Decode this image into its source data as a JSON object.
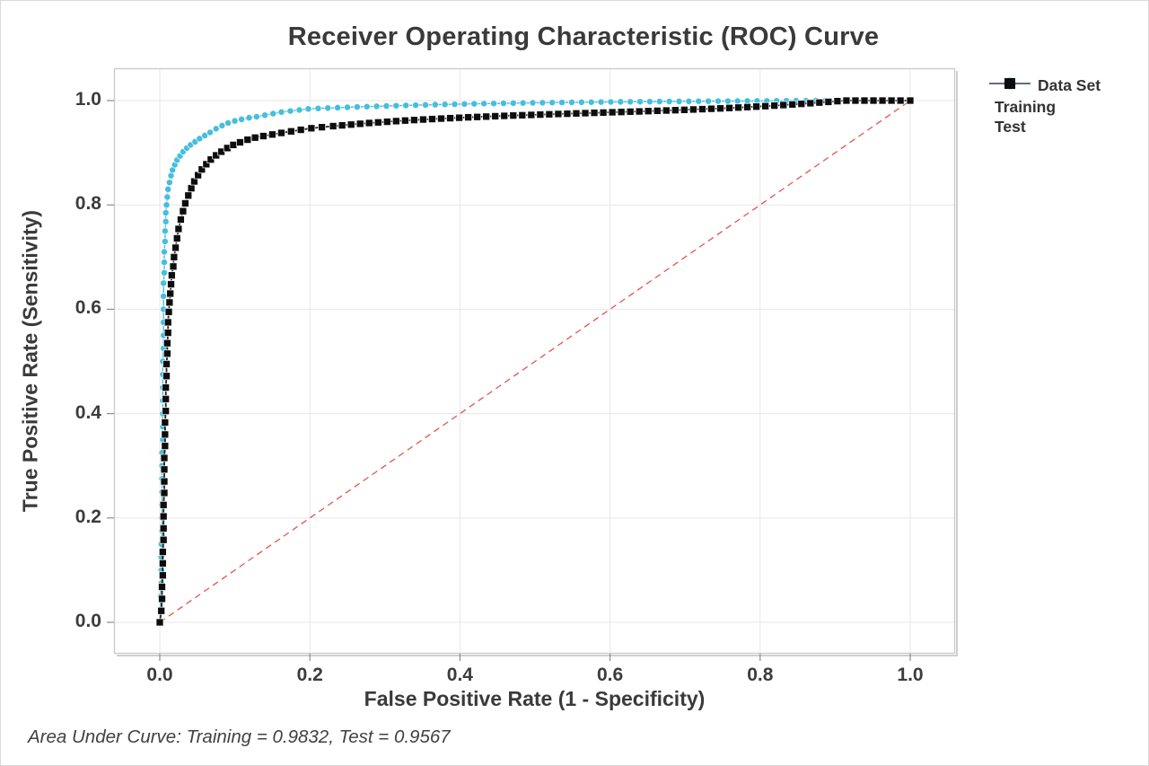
{
  "figure": {
    "title": "Receiver Operating Characteristic (ROC) Curve",
    "footer": "Area Under Curve: Training = 0.9832, Test = 0.9567"
  },
  "legend": {
    "title": "Data Set",
    "items": [
      {
        "label": "Training",
        "marker": "circle",
        "color": "#47BEDC",
        "line_color": "#47BEDC"
      },
      {
        "label": "Test",
        "marker": "square",
        "color": "#0d0d0d",
        "line_color": "#4d4d4d"
      }
    ]
  },
  "colors": {
    "grid": "#e7e7e7",
    "frame": "#c9c9c9",
    "frame_shadow": "#cfcfcf",
    "tick": "#8c8c8c",
    "reference": "#E2554D",
    "training": "#47BEDC",
    "test": "#0d0d0d",
    "test_line": "#1f1f1f",
    "text": "#3a3a3a"
  },
  "chart_data": {
    "type": "line",
    "title": "Receiver Operating Characteristic (ROC) Curve",
    "xlabel": "False Positive Rate (1 - Specificity)",
    "ylabel": "True Positive Rate (Sensitivity)",
    "xlim": [
      0,
      1
    ],
    "ylim": [
      0,
      1
    ],
    "grid": true,
    "legend_position": "right",
    "ticks": {
      "x": [
        "0.0",
        "0.2",
        "0.4",
        "0.6",
        "0.8",
        "1.0"
      ],
      "y": [
        "0.0",
        "0.2",
        "0.4",
        "0.6",
        "0.8",
        "1.0"
      ]
    },
    "reference_line": {
      "from": [
        0,
        0
      ],
      "to": [
        1,
        1
      ],
      "style": "dashed",
      "color": "#E2554D"
    },
    "annotation": "Area Under Curve: Training = 0.9832, Test = 0.9567",
    "series": [
      {
        "name": "Training",
        "auc": 0.9832,
        "marker": "circle",
        "color": "#47BEDC",
        "points": [
          [
            0,
            0
          ],
          [
            0.001,
            0.025
          ],
          [
            0.001,
            0.05
          ],
          [
            0.002,
            0.075
          ],
          [
            0.002,
            0.1
          ],
          [
            0.002,
            0.125
          ],
          [
            0.002,
            0.15
          ],
          [
            0.003,
            0.175
          ],
          [
            0.003,
            0.2
          ],
          [
            0.003,
            0.225
          ],
          [
            0.003,
            0.25
          ],
          [
            0.003,
            0.275
          ],
          [
            0.003,
            0.3
          ],
          [
            0.003,
            0.325
          ],
          [
            0.004,
            0.35
          ],
          [
            0.004,
            0.375
          ],
          [
            0.004,
            0.4
          ],
          [
            0.004,
            0.425
          ],
          [
            0.004,
            0.45
          ],
          [
            0.004,
            0.475
          ],
          [
            0.004,
            0.5
          ],
          [
            0.005,
            0.525
          ],
          [
            0.005,
            0.55
          ],
          [
            0.005,
            0.575
          ],
          [
            0.005,
            0.6
          ],
          [
            0.005,
            0.625
          ],
          [
            0.005,
            0.65
          ],
          [
            0.006,
            0.67
          ],
          [
            0.006,
            0.69
          ],
          [
            0.006,
            0.71
          ],
          [
            0.007,
            0.73
          ],
          [
            0.007,
            0.75
          ],
          [
            0.008,
            0.768
          ],
          [
            0.008,
            0.785
          ],
          [
            0.009,
            0.8
          ],
          [
            0.01,
            0.815
          ],
          [
            0.011,
            0.83
          ],
          [
            0.013,
            0.843
          ],
          [
            0.015,
            0.856
          ],
          [
            0.017,
            0.867
          ],
          [
            0.02,
            0.877
          ],
          [
            0.023,
            0.886
          ],
          [
            0.027,
            0.894
          ],
          [
            0.031,
            0.902
          ],
          [
            0.036,
            0.909
          ],
          [
            0.041,
            0.915
          ],
          [
            0.047,
            0.921
          ],
          [
            0.053,
            0.927
          ],
          [
            0.06,
            0.933
          ],
          [
            0.067,
            0.939
          ],
          [
            0.075,
            0.946
          ],
          [
            0.083,
            0.952
          ],
          [
            0.091,
            0.957
          ],
          [
            0.1,
            0.961
          ],
          [
            0.109,
            0.964
          ],
          [
            0.119,
            0.967
          ],
          [
            0.129,
            0.969
          ],
          [
            0.14,
            0.972
          ],
          [
            0.151,
            0.975
          ],
          [
            0.162,
            0.978
          ],
          [
            0.174,
            0.98
          ],
          [
            0.186,
            0.982
          ],
          [
            0.198,
            0.984
          ],
          [
            0.211,
            0.985
          ],
          [
            0.224,
            0.9857
          ],
          [
            0.237,
            0.9864
          ],
          [
            0.25,
            0.9871
          ],
          [
            0.263,
            0.9878
          ],
          [
            0.276,
            0.9884
          ],
          [
            0.289,
            0.989
          ],
          [
            0.302,
            0.9896
          ],
          [
            0.315,
            0.9902
          ],
          [
            0.328,
            0.9907
          ],
          [
            0.341,
            0.9912
          ],
          [
            0.354,
            0.9917
          ],
          [
            0.367,
            0.9922
          ],
          [
            0.38,
            0.9926
          ],
          [
            0.393,
            0.993
          ],
          [
            0.406,
            0.9934
          ],
          [
            0.419,
            0.9938
          ],
          [
            0.432,
            0.9942
          ],
          [
            0.445,
            0.9945
          ],
          [
            0.458,
            0.9948
          ],
          [
            0.471,
            0.9951
          ],
          [
            0.484,
            0.9954
          ],
          [
            0.497,
            0.9957
          ],
          [
            0.51,
            0.996
          ],
          [
            0.523,
            0.9962
          ],
          [
            0.536,
            0.9964
          ],
          [
            0.549,
            0.9966
          ],
          [
            0.562,
            0.9968
          ],
          [
            0.575,
            0.997
          ],
          [
            0.588,
            0.9972
          ],
          [
            0.601,
            0.9974
          ],
          [
            0.614,
            0.9976
          ],
          [
            0.627,
            0.9977
          ],
          [
            0.64,
            0.9979
          ],
          [
            0.653,
            0.998
          ],
          [
            0.666,
            0.9982
          ],
          [
            0.679,
            0.9983
          ],
          [
            0.692,
            0.9984
          ],
          [
            0.705,
            0.9986
          ],
          [
            0.718,
            0.9987
          ],
          [
            0.731,
            0.9988
          ],
          [
            0.744,
            0.9989
          ],
          [
            0.757,
            0.999
          ],
          [
            0.77,
            0.9991
          ],
          [
            0.783,
            0.9992
          ],
          [
            0.796,
            0.9993
          ],
          [
            0.809,
            0.9994
          ],
          [
            0.822,
            0.9995
          ],
          [
            0.835,
            0.9996
          ],
          [
            0.848,
            0.9997
          ],
          [
            0.861,
            0.9998
          ],
          [
            0.874,
            0.9999
          ],
          [
            0.887,
            1
          ]
        ]
      },
      {
        "name": "Test",
        "auc": 0.9567,
        "marker": "square",
        "color": "#0d0d0d",
        "points": [
          [
            0,
            0
          ],
          [
            0.002,
            0.022
          ],
          [
            0.003,
            0.045
          ],
          [
            0.003,
            0.068
          ],
          [
            0.004,
            0.09
          ],
          [
            0.004,
            0.113
          ],
          [
            0.004,
            0.135
          ],
          [
            0.005,
            0.158
          ],
          [
            0.005,
            0.18
          ],
          [
            0.005,
            0.203
          ],
          [
            0.005,
            0.225
          ],
          [
            0.006,
            0.248
          ],
          [
            0.006,
            0.27
          ],
          [
            0.006,
            0.293
          ],
          [
            0.006,
            0.315
          ],
          [
            0.007,
            0.338
          ],
          [
            0.007,
            0.36
          ],
          [
            0.007,
            0.383
          ],
          [
            0.008,
            0.405
          ],
          [
            0.008,
            0.428
          ],
          [
            0.008,
            0.45
          ],
          [
            0.009,
            0.472
          ],
          [
            0.009,
            0.495
          ],
          [
            0.01,
            0.515
          ],
          [
            0.01,
            0.535
          ],
          [
            0.011,
            0.555
          ],
          [
            0.011,
            0.575
          ],
          [
            0.012,
            0.595
          ],
          [
            0.013,
            0.613
          ],
          [
            0.014,
            0.63
          ],
          [
            0.015,
            0.648
          ],
          [
            0.016,
            0.665
          ],
          [
            0.018,
            0.682
          ],
          [
            0.019,
            0.7
          ],
          [
            0.021,
            0.718
          ],
          [
            0.023,
            0.736
          ],
          [
            0.025,
            0.754
          ],
          [
            0.028,
            0.772
          ],
          [
            0.031,
            0.788
          ],
          [
            0.034,
            0.803
          ],
          [
            0.038,
            0.818
          ],
          [
            0.042,
            0.832
          ],
          [
            0.046,
            0.845
          ],
          [
            0.051,
            0.857
          ],
          [
            0.056,
            0.868
          ],
          [
            0.062,
            0.878
          ],
          [
            0.068,
            0.887
          ],
          [
            0.075,
            0.895
          ],
          [
            0.082,
            0.902
          ],
          [
            0.09,
            0.909
          ],
          [
            0.098,
            0.915
          ],
          [
            0.107,
            0.92
          ],
          [
            0.117,
            0.925
          ],
          [
            0.127,
            0.929
          ],
          [
            0.138,
            0.932
          ],
          [
            0.15,
            0.935
          ],
          [
            0.162,
            0.938
          ],
          [
            0.175,
            0.941
          ],
          [
            0.188,
            0.944
          ],
          [
            0.202,
            0.947
          ],
          [
            0.216,
            0.949
          ],
          [
            0.231,
            0.951
          ],
          [
            0.243,
            0.9525
          ],
          [
            0.255,
            0.954
          ],
          [
            0.267,
            0.9555
          ],
          [
            0.279,
            0.957
          ],
          [
            0.291,
            0.9582
          ],
          [
            0.303,
            0.9594
          ],
          [
            0.315,
            0.9606
          ],
          [
            0.327,
            0.9617
          ],
          [
            0.339,
            0.9627
          ],
          [
            0.351,
            0.9637
          ],
          [
            0.363,
            0.9646
          ],
          [
            0.375,
            0.9655
          ],
          [
            0.387,
            0.9663
          ],
          [
            0.399,
            0.9671
          ],
          [
            0.411,
            0.9679
          ],
          [
            0.423,
            0.9686
          ],
          [
            0.435,
            0.9693
          ],
          [
            0.447,
            0.97
          ],
          [
            0.459,
            0.9707
          ],
          [
            0.471,
            0.9713
          ],
          [
            0.483,
            0.9719
          ],
          [
            0.495,
            0.9725
          ],
          [
            0.507,
            0.9731
          ],
          [
            0.519,
            0.9737
          ],
          [
            0.531,
            0.9743
          ],
          [
            0.543,
            0.9748
          ],
          [
            0.555,
            0.9754
          ],
          [
            0.567,
            0.9759
          ],
          [
            0.579,
            0.9765
          ],
          [
            0.591,
            0.977
          ],
          [
            0.603,
            0.9776
          ],
          [
            0.615,
            0.9781
          ],
          [
            0.627,
            0.9787
          ],
          [
            0.639,
            0.9792
          ],
          [
            0.651,
            0.9798
          ],
          [
            0.663,
            0.9804
          ],
          [
            0.675,
            0.981
          ],
          [
            0.687,
            0.9816
          ],
          [
            0.699,
            0.9822
          ],
          [
            0.711,
            0.9829
          ],
          [
            0.723,
            0.9836
          ],
          [
            0.735,
            0.9843
          ],
          [
            0.747,
            0.985
          ],
          [
            0.759,
            0.9858
          ],
          [
            0.771,
            0.9866
          ],
          [
            0.783,
            0.9875
          ],
          [
            0.795,
            0.9884
          ],
          [
            0.807,
            0.9893
          ],
          [
            0.819,
            0.9903
          ],
          [
            0.831,
            0.9914
          ],
          [
            0.843,
            0.9925
          ],
          [
            0.855,
            0.9937
          ],
          [
            0.867,
            0.9949
          ],
          [
            0.879,
            0.9962
          ],
          [
            0.891,
            0.9975
          ],
          [
            0.903,
            0.9989
          ],
          [
            0.915,
            1
          ],
          [
            0.927,
            1
          ],
          [
            0.939,
            1
          ],
          [
            0.951,
            1
          ],
          [
            0.963,
            1
          ],
          [
            0.975,
            1
          ],
          [
            0.987,
            1
          ],
          [
            1,
            1
          ]
        ]
      }
    ]
  }
}
